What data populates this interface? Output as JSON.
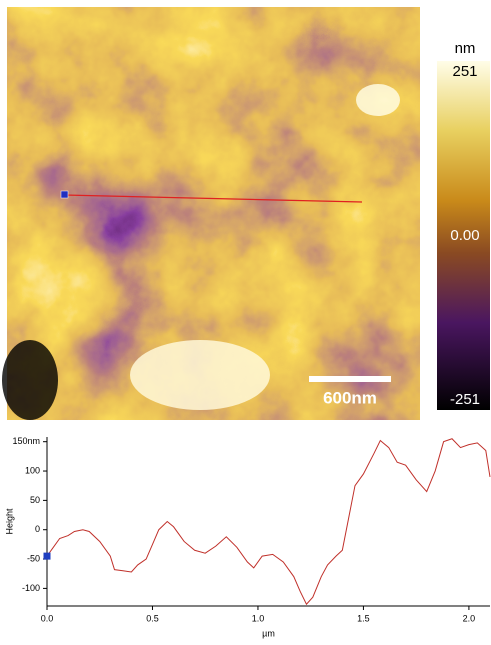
{
  "image": {
    "scale_bar": "600nm"
  },
  "colorbar": {
    "unit": "nm",
    "ticks": [
      251,
      {
        "value": 0,
        "label": "0.00"
      },
      -251
    ]
  },
  "chart_data": {
    "type": "line",
    "ylabel": "Height",
    "xlabel": "µm",
    "color": "#c0302a",
    "marker_color": "#1f3fc0",
    "x": [
      0,
      0.03,
      0.06,
      0.1,
      0.13,
      0.17,
      0.2,
      0.25,
      0.3,
      0.32,
      0.36,
      0.4,
      0.43,
      0.47,
      0.5,
      0.53,
      0.57,
      0.6,
      0.65,
      0.7,
      0.75,
      0.8,
      0.85,
      0.9,
      0.95,
      0.98,
      1.02,
      1.07,
      1.12,
      1.17,
      1.2,
      1.23,
      1.26,
      1.3,
      1.33,
      1.37,
      1.4,
      1.43,
      1.46,
      1.5,
      1.55,
      1.58,
      1.62,
      1.66,
      1.7,
      1.75,
      1.8,
      1.84,
      1.88,
      1.92,
      1.96,
      2.0,
      2.04,
      2.08,
      2.1
    ],
    "values": [
      -45,
      -30,
      -15,
      -10,
      -3,
      0,
      -3,
      -20,
      -45,
      -68,
      -70,
      -72,
      -60,
      -50,
      -25,
      0,
      14,
      5,
      -20,
      -35,
      -40,
      -28,
      -12,
      -30,
      -55,
      -65,
      -45,
      -42,
      -55,
      -80,
      -105,
      -127,
      -115,
      -80,
      -60,
      -45,
      -35,
      20,
      75,
      95,
      130,
      152,
      140,
      115,
      110,
      85,
      65,
      100,
      150,
      155,
      140,
      145,
      148,
      135,
      90
    ],
    "xlim": [
      0,
      2.1
    ],
    "ylim": [
      -130,
      158
    ],
    "xticks": [
      {
        "value": 0,
        "label": "0.0"
      },
      0.5,
      {
        "value": 1,
        "label": "1.0"
      },
      1.5,
      {
        "value": 2,
        "label": "2.0"
      }
    ],
    "yticks": [
      {
        "value": 150,
        "label": "150nm"
      },
      100,
      50,
      0,
      -50,
      -100
    ]
  }
}
